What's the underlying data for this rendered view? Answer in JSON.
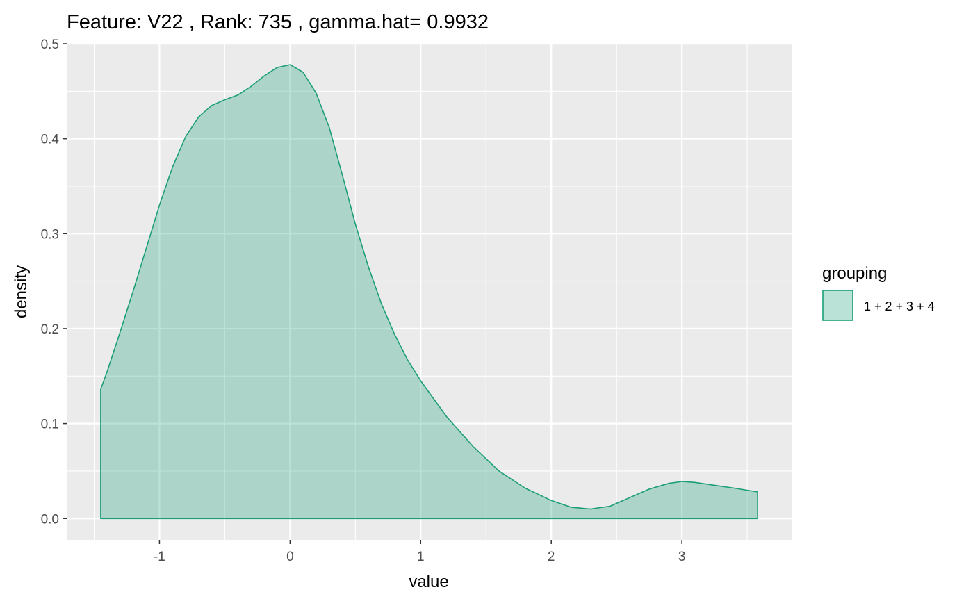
{
  "chart_data": {
    "type": "area",
    "title": "Feature: V22 , Rank: 735 , gamma.hat= 0.9932",
    "xlabel": "value",
    "ylabel": "density",
    "xlim": [
      -1.71,
      3.84
    ],
    "ylim": [
      -0.0225,
      0.5
    ],
    "x_ticks": [
      -1,
      0,
      1,
      2,
      3
    ],
    "x_tick_labels": [
      "-1",
      "0",
      "1",
      "2",
      "3"
    ],
    "y_ticks": [
      0.0,
      0.1,
      0.2,
      0.3,
      0.4,
      0.5
    ],
    "y_tick_labels": [
      "0.0",
      "0.1",
      "0.2",
      "0.3",
      "0.4",
      "0.5"
    ],
    "grid": true,
    "legend": {
      "title": "grouping",
      "position": "right",
      "entries": [
        "1 + 2 + 3 + 4"
      ]
    },
    "series": [
      {
        "name": "1 + 2 + 3 + 4",
        "fill": "#1b9e77",
        "fill_opacity": 0.3,
        "stroke": "#1b9e77",
        "x": [
          -1.45,
          -1.4,
          -1.3,
          -1.2,
          -1.1,
          -1.0,
          -0.9,
          -0.8,
          -0.7,
          -0.6,
          -0.5,
          -0.4,
          -0.3,
          -0.2,
          -0.1,
          0.0,
          0.1,
          0.2,
          0.3,
          0.4,
          0.5,
          0.6,
          0.7,
          0.8,
          0.9,
          1.0,
          1.2,
          1.4,
          1.6,
          1.8,
          2.0,
          2.15,
          2.3,
          2.45,
          2.6,
          2.75,
          2.9,
          3.0,
          3.1,
          3.25,
          3.4,
          3.58
        ],
        "y": [
          0.136,
          0.155,
          0.197,
          0.24,
          0.285,
          0.33,
          0.37,
          0.402,
          0.423,
          0.435,
          0.441,
          0.446,
          0.455,
          0.466,
          0.475,
          0.478,
          0.47,
          0.448,
          0.412,
          0.362,
          0.31,
          0.265,
          0.226,
          0.194,
          0.167,
          0.145,
          0.107,
          0.076,
          0.05,
          0.032,
          0.019,
          0.012,
          0.01,
          0.013,
          0.022,
          0.031,
          0.037,
          0.039,
          0.038,
          0.035,
          0.032,
          0.028
        ]
      }
    ]
  }
}
